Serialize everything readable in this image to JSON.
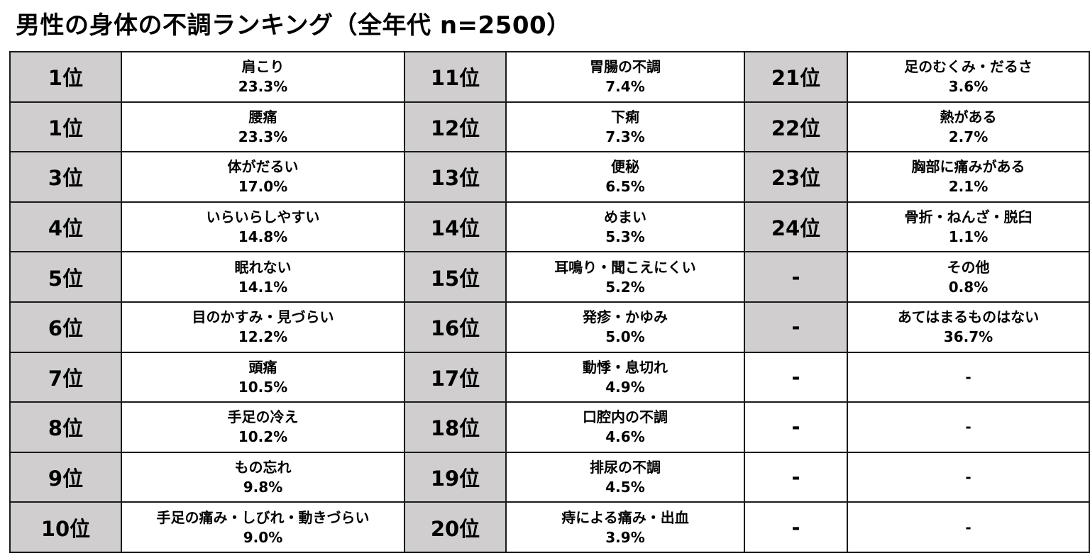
{
  "title": "男性の身体の不調ランキング（全年代 n=2500）",
  "colors": {
    "rank_cell_bg": "#d0cece",
    "border": "#1a1a1a"
  },
  "rows": [
    [
      {
        "rank": "1位",
        "name": "肩こり",
        "pct": "23.3%"
      },
      {
        "rank": "11位",
        "name": "胃腸の不調",
        "pct": "7.4%"
      },
      {
        "rank": "21位",
        "name": "足のむくみ・だるさ",
        "pct": "3.6%"
      }
    ],
    [
      {
        "rank": "1位",
        "name": "腰痛",
        "pct": "23.3%"
      },
      {
        "rank": "12位",
        "name": "下痢",
        "pct": "7.3%"
      },
      {
        "rank": "22位",
        "name": "熱がある",
        "pct": "2.7%"
      }
    ],
    [
      {
        "rank": "3位",
        "name": "体がだるい",
        "pct": "17.0%"
      },
      {
        "rank": "13位",
        "name": "便秘",
        "pct": "6.5%"
      },
      {
        "rank": "23位",
        "name": "胸部に痛みがある",
        "pct": "2.1%"
      }
    ],
    [
      {
        "rank": "4位",
        "name": "いらいらしやすい",
        "pct": "14.8%"
      },
      {
        "rank": "14位",
        "name": "めまい",
        "pct": "5.3%"
      },
      {
        "rank": "24位",
        "name": "骨折・ねんざ・脱臼",
        "pct": "1.1%"
      }
    ],
    [
      {
        "rank": "5位",
        "name": "眠れない",
        "pct": "14.1%"
      },
      {
        "rank": "15位",
        "name": "耳鳴り・聞こえにくい",
        "pct": "5.2%"
      },
      {
        "rank": "-",
        "name": "その他",
        "pct": "0.8%"
      }
    ],
    [
      {
        "rank": "6位",
        "name": "目のかすみ・見づらい",
        "pct": "12.2%"
      },
      {
        "rank": "16位",
        "name": "発疹・かゆみ",
        "pct": "5.0%"
      },
      {
        "rank": "-",
        "name": "あてはまるものはない",
        "pct": "36.7%"
      }
    ],
    [
      {
        "rank": "7位",
        "name": "頭痛",
        "pct": "10.5%"
      },
      {
        "rank": "17位",
        "name": "動悸・息切れ",
        "pct": "4.9%"
      },
      {
        "rank": "-",
        "name": "-",
        "pct": ""
      }
    ],
    [
      {
        "rank": "8位",
        "name": "手足の冷え",
        "pct": "10.2%"
      },
      {
        "rank": "18位",
        "name": "口腔内の不調",
        "pct": "4.6%"
      },
      {
        "rank": "-",
        "name": "-",
        "pct": ""
      }
    ],
    [
      {
        "rank": "9位",
        "name": "もの忘れ",
        "pct": "9.8%"
      },
      {
        "rank": "19位",
        "name": "排尿の不調",
        "pct": "4.5%"
      },
      {
        "rank": "-",
        "name": "-",
        "pct": ""
      }
    ],
    [
      {
        "rank": "10位",
        "name": "手足の痛み・しびれ・動きづらい",
        "pct": "9.0%"
      },
      {
        "rank": "20位",
        "name": "痔による痛み・出血",
        "pct": "3.9%"
      },
      {
        "rank": "-",
        "name": "-",
        "pct": ""
      }
    ]
  ]
}
